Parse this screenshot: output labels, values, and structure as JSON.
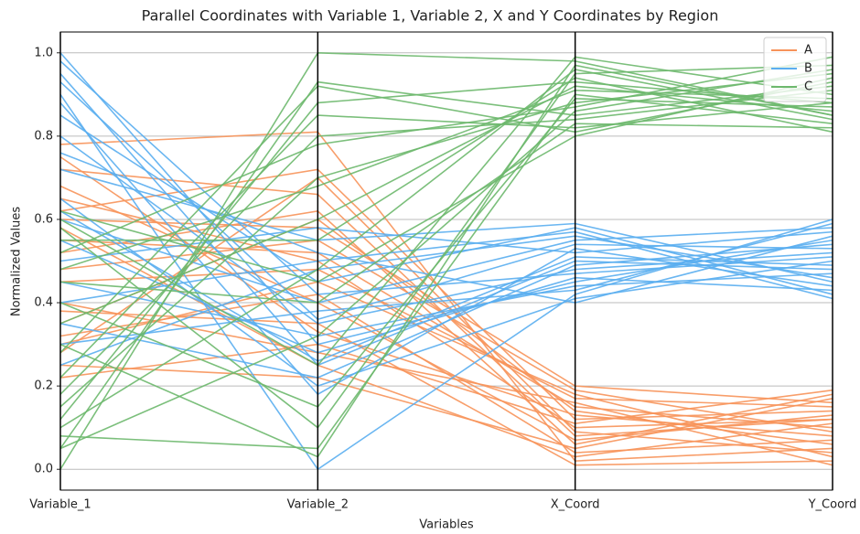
{
  "chart_data": {
    "type": "parallel",
    "title": "Parallel Coordinates with Variable 1, Variable 2, X and Y Coordinates by Region",
    "x_label": "Variables",
    "y_label": "Normalized Values",
    "categories": [
      "Variable_1",
      "Variable_2",
      "X_Coord",
      "Y_Coord"
    ],
    "ylim": [
      -0.05,
      1.05
    ],
    "yticks": [
      {
        "value": 0,
        "label": "0.0"
      },
      {
        "value": 0.2,
        "label": "0.2"
      },
      {
        "value": 0.4,
        "label": "0.4"
      },
      {
        "value": 0.6,
        "label": "0.6"
      },
      {
        "value": 0.8,
        "label": "0.8"
      },
      {
        "value": 1,
        "label": "1.0"
      }
    ],
    "grid": true,
    "legend": "upper right",
    "series": [
      {
        "name": "A",
        "color": "#f7935a",
        "values": [
          [
            0.78,
            0.81,
            0.02,
            0.05
          ],
          [
            0.72,
            0.66,
            0.08,
            0.12
          ],
          [
            0.55,
            0.52,
            0.15,
            0.1
          ],
          [
            0.3,
            0.45,
            0.18,
            0.03
          ],
          [
            0.25,
            0.22,
            0.05,
            0.17
          ],
          [
            0.62,
            0.72,
            0.12,
            0.14
          ],
          [
            0.38,
            0.35,
            0.01,
            0.02
          ],
          [
            0.48,
            0.55,
            0.19,
            0.09
          ],
          [
            0.22,
            0.3,
            0.11,
            0.19
          ],
          [
            0.68,
            0.4,
            0.07,
            0.13
          ],
          [
            0.35,
            0.6,
            0.14,
            0.06
          ],
          [
            0.58,
            0.25,
            0.03,
            0.11
          ],
          [
            0.45,
            0.48,
            0.17,
            0.15
          ],
          [
            0.28,
            0.7,
            0.09,
            0.04
          ],
          [
            0.75,
            0.33,
            0.13,
            0.08
          ],
          [
            0.52,
            0.62,
            0.06,
            0.18
          ],
          [
            0.4,
            0.28,
            0.16,
            0.01
          ],
          [
            0.65,
            0.5,
            0.1,
            0.12
          ],
          [
            0.32,
            0.42,
            0.04,
            0.07
          ],
          [
            0.6,
            0.58,
            0.2,
            0.16
          ]
        ]
      },
      {
        "name": "B",
        "color": "#5aaef0",
        "values": [
          [
            1.0,
            0.3,
            0.45,
            0.55
          ],
          [
            0.95,
            0.25,
            0.5,
            0.48
          ],
          [
            0.9,
            0.0,
            0.42,
            0.6
          ],
          [
            0.85,
            0.45,
            0.58,
            0.42
          ],
          [
            0.8,
            0.35,
            0.48,
            0.52
          ],
          [
            0.72,
            0.55,
            0.59,
            0.45
          ],
          [
            0.65,
            0.2,
            0.41,
            0.5
          ],
          [
            0.6,
            0.4,
            0.55,
            0.58
          ],
          [
            0.55,
            0.28,
            0.46,
            0.43
          ],
          [
            0.5,
            0.58,
            0.52,
            0.57
          ],
          [
            0.45,
            0.32,
            0.44,
            0.47
          ],
          [
            0.4,
            0.5,
            0.57,
            0.41
          ],
          [
            0.35,
            0.22,
            0.49,
            0.54
          ],
          [
            0.3,
            0.38,
            0.43,
            0.59
          ],
          [
            0.25,
            0.48,
            0.56,
            0.46
          ],
          [
            0.98,
            0.42,
            0.47,
            0.51
          ],
          [
            0.88,
            0.18,
            0.53,
            0.44
          ],
          [
            0.76,
            0.52,
            0.4,
            0.56
          ],
          [
            0.62,
            0.26,
            0.51,
            0.49
          ],
          [
            0.93,
            0.36,
            0.54,
            0.53
          ]
        ]
      },
      {
        "name": "C",
        "color": "#6db86d",
        "values": [
          [
            0.0,
            1.0,
            0.98,
            0.85
          ],
          [
            0.05,
            0.93,
            0.85,
            0.92
          ],
          [
            0.08,
            0.05,
            0.9,
            0.83
          ],
          [
            0.58,
            0.1,
            0.95,
            0.97
          ],
          [
            0.22,
            0.85,
            0.82,
            0.88
          ],
          [
            0.6,
            0.25,
            0.99,
            0.9
          ],
          [
            0.15,
            0.7,
            0.88,
            0.95
          ],
          [
            0.45,
            0.4,
            0.83,
            0.82
          ],
          [
            0.35,
            0.6,
            0.92,
            0.86
          ],
          [
            0.52,
            0.78,
            0.87,
            0.99
          ],
          [
            0.1,
            0.48,
            0.96,
            0.84
          ],
          [
            0.28,
            0.92,
            0.81,
            0.93
          ],
          [
            0.4,
            0.15,
            0.89,
            0.87
          ],
          [
            0.55,
            0.55,
            0.94,
            0.81
          ],
          [
            0.05,
            0.32,
            0.86,
            0.96
          ],
          [
            0.48,
            0.68,
            0.91,
            0.89
          ],
          [
            0.18,
            0.8,
            0.84,
            0.91
          ],
          [
            0.3,
            0.03,
            0.97,
            0.85
          ],
          [
            0.62,
            0.45,
            0.8,
            0.94
          ],
          [
            0.12,
            0.88,
            0.93,
            0.88
          ]
        ]
      }
    ]
  }
}
